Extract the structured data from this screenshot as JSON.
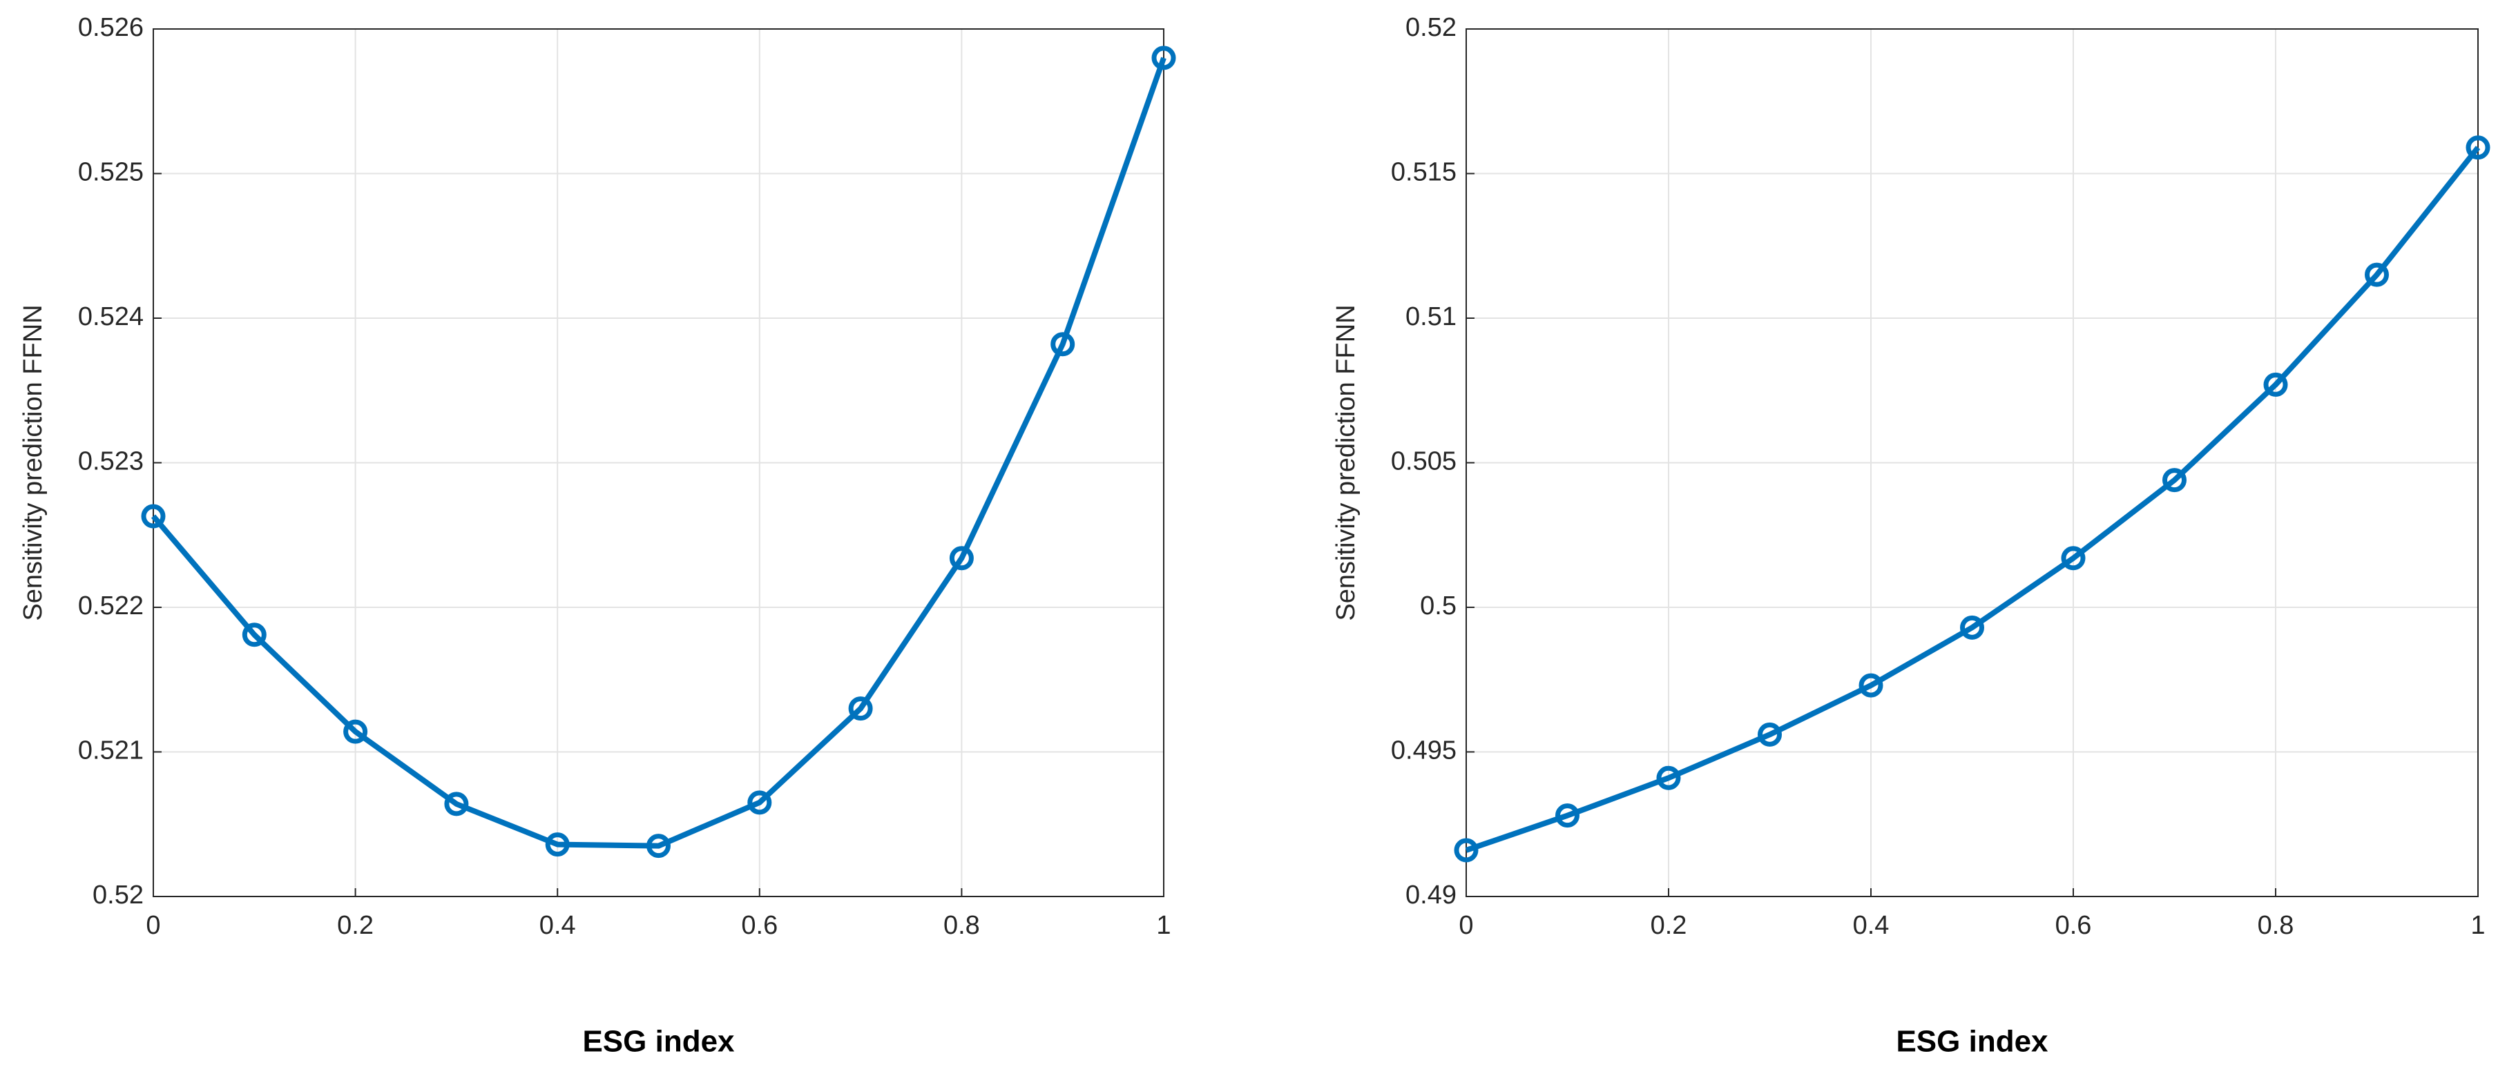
{
  "chart_data": [
    {
      "type": "line",
      "x": [
        0,
        0.1,
        0.2,
        0.3,
        0.4,
        0.5,
        0.6,
        0.7,
        0.8,
        0.9,
        1
      ],
      "values": [
        0.52263,
        0.52181,
        0.52114,
        0.52064,
        0.52036,
        0.52035,
        0.52065,
        0.5213,
        0.52234,
        0.52382,
        0.5258
      ],
      "color": "#0072bd",
      "xlabel": "ESG index",
      "ylabel": "Sensitivity prediction FFNN",
      "xlim": [
        0,
        1
      ],
      "xticks": [
        0,
        0.2,
        0.4,
        0.6,
        0.8,
        1
      ],
      "ylim": [
        0.52,
        0.526
      ],
      "yticks": [
        0.52,
        0.521,
        0.522,
        0.523,
        0.524,
        0.525,
        0.526
      ],
      "grid": true
    },
    {
      "type": "line",
      "x": [
        0,
        0.1,
        0.2,
        0.3,
        0.4,
        0.5,
        0.6,
        0.7,
        0.8,
        0.9,
        1
      ],
      "values": [
        0.4916,
        0.4928,
        0.4941,
        0.4956,
        0.4973,
        0.4993,
        0.5017,
        0.5044,
        0.5077,
        0.5115,
        0.5159
      ],
      "color": "#0072bd",
      "xlabel": "ESG index",
      "ylabel": "Sensitivity prediction FFNN",
      "xlim": [
        0,
        1
      ],
      "xticks": [
        0,
        0.2,
        0.4,
        0.6,
        0.8,
        1
      ],
      "ylim": [
        0.49,
        0.52
      ],
      "yticks": [
        0.49,
        0.495,
        0.5,
        0.505,
        0.51,
        0.515,
        0.52
      ],
      "grid": true
    }
  ]
}
